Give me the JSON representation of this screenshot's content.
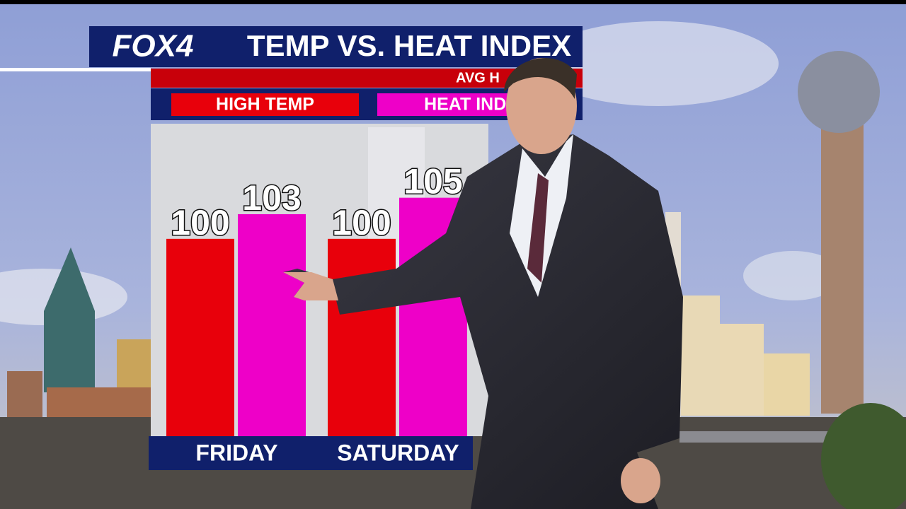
{
  "chart_data": {
    "type": "bar",
    "logo": "FOX4",
    "title": "TEMP VS. HEAT INDEX",
    "subtitle": "AVG H",
    "categories": [
      "FRIDAY",
      "SATURDAY"
    ],
    "series": [
      {
        "name": "HIGH TEMP",
        "color": "#e8000b",
        "values": [
          100,
          100
        ]
      },
      {
        "name": "HEAT INDE",
        "color": "#ee00c8",
        "values": [
          103,
          105
        ]
      }
    ],
    "ylim": [
      76,
      114
    ]
  }
}
